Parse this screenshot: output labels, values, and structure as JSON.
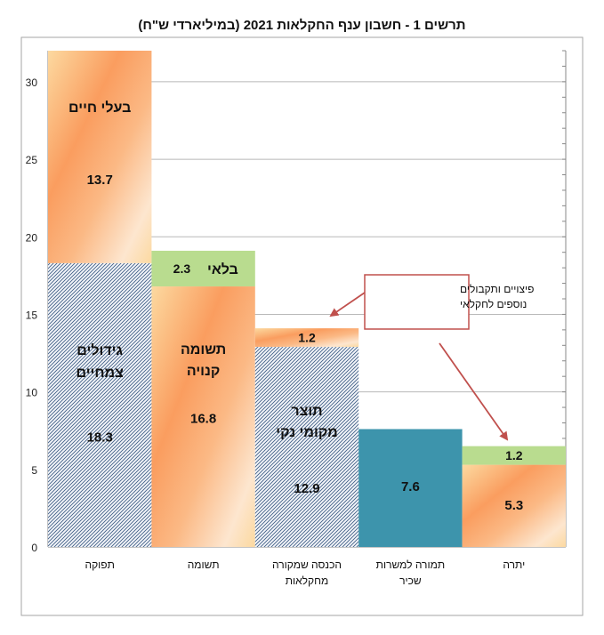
{
  "chart_data": {
    "type": "bar",
    "title": "תרשים 1 - חשבון ענף החקלאות 2021 (במיליארדי ש\"ח)",
    "ylim": [
      0,
      32
    ],
    "yticks": [
      0,
      5,
      10,
      15,
      20,
      25,
      30
    ],
    "grid": true,
    "categories": [
      "תפוקה",
      "תשומה",
      "הכנסה שמקורה מחקלאות",
      "תמורה למשרות שכיר",
      "יתרה"
    ],
    "stacks": [
      {
        "category": "תפוקה",
        "segments": [
          {
            "value": 18.3,
            "label": "גידולים צמחיים",
            "style": "hatch"
          },
          {
            "value": 13.7,
            "label": "בעלי חיים",
            "style": "orange"
          }
        ]
      },
      {
        "category": "תשומה",
        "segments": [
          {
            "value": 16.8,
            "label": "תשומה קנויה",
            "style": "orange"
          },
          {
            "value": 2.3,
            "label": "בלאי",
            "style": "green"
          }
        ]
      },
      {
        "category": "הכנסה שמקורה מחקלאות",
        "segments": [
          {
            "value": 12.9,
            "label": "תוצר מקומי נקי",
            "style": "hatch"
          },
          {
            "value": 1.2,
            "label": "",
            "style": "orange"
          }
        ]
      },
      {
        "category": "תמורה למשרות שכיר",
        "segments": [
          {
            "value": 7.6,
            "label": "",
            "style": "teal"
          }
        ]
      },
      {
        "category": "יתרה",
        "segments": [
          {
            "value": 5.3,
            "label": "",
            "style": "orange"
          },
          {
            "value": 1.2,
            "label": "",
            "style": "green"
          }
        ]
      }
    ],
    "annotation": {
      "text": "פיצויים ותקבולים נוספים לחקלאי"
    },
    "colors": {
      "green": "#b9dc8f",
      "teal": "#3d94ac",
      "orange_a": "#fcd9a0",
      "orange_b": "#fa9d5f",
      "hatch_line": "#3f5e86",
      "annotation_border": "#c0504d",
      "arrow": "#c0504d",
      "grid": "#b8b8b8",
      "frame": "#a6a6a6"
    }
  }
}
